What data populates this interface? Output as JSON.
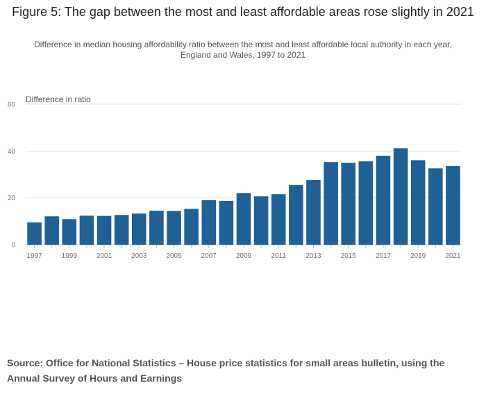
{
  "figure": {
    "title": "Figure 5: The gap between the most and least affordable areas rose slightly in 2021",
    "subtitle": "Difference in median housing affordability ratio between the most and least affordable local authority in each year, England and Wales, 1997 to 2021",
    "source": "Source: Office for National Statistics –  House price statistics for small areas bulletin, using the Annual Survey of Hours and Earnings"
  },
  "chart_data": {
    "type": "bar",
    "title": "Figure 5: The gap between the most and least affordable areas rose slightly in 2021",
    "xlabel": "",
    "ylabel": "Difference in ratio",
    "categories": [
      "1997",
      "1998",
      "1999",
      "2000",
      "2001",
      "2002",
      "2003",
      "2004",
      "2005",
      "2006",
      "2007",
      "2008",
      "2009",
      "2010",
      "2011",
      "2012",
      "2013",
      "2014",
      "2015",
      "2016",
      "2017",
      "2018",
      "2019",
      "2020",
      "2021"
    ],
    "values": [
      9.5,
      12.1,
      10.9,
      12.4,
      12.3,
      12.7,
      13.3,
      14.5,
      14.4,
      15.3,
      19.0,
      18.7,
      22.0,
      20.7,
      21.6,
      25.5,
      27.6,
      35.3,
      35.0,
      35.6,
      38.0,
      41.2,
      36.1,
      32.6,
      33.6
    ],
    "ylim": [
      0,
      60
    ],
    "yticks": [
      0,
      20,
      40,
      60
    ],
    "xtick_labels": [
      "1997",
      "1999",
      "2001",
      "2003",
      "2005",
      "2007",
      "2009",
      "2011",
      "2013",
      "2015",
      "2017",
      "2019",
      "2021"
    ],
    "grid": true,
    "bar_color": "#206095"
  }
}
